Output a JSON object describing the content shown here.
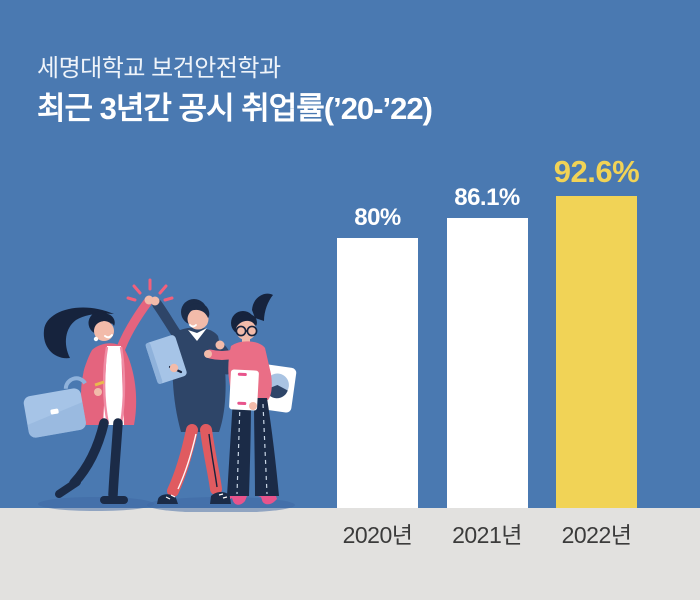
{
  "header": {
    "subtitle": "세명대학교 보건안전학과",
    "title": "최근 3년간 공시 취업률(’20-’22)"
  },
  "chart_data": {
    "type": "bar",
    "title": "최근 3년간 공시 취업률(’20-’22)",
    "subtitle": "세명대학교 보건안전학과",
    "categories": [
      "2020년",
      "2021년",
      "2022년"
    ],
    "values": [
      80,
      86.1,
      92.6
    ],
    "value_labels": [
      "80%",
      "86.1%",
      "92.6%"
    ],
    "highlight_index": 2,
    "ylim": [
      0,
      100
    ],
    "grid": false,
    "legend": false,
    "bar_colors": [
      "#FFFFFF",
      "#FFFFFF",
      "#F1D356"
    ],
    "value_label_colors": [
      "#FFFFFF",
      "#FFFFFF",
      "#F1D356"
    ],
    "category_label_color": "#3B3B3B"
  },
  "colors": {
    "background": "#4A79B1",
    "floor": "#E2E1DF",
    "accent_yellow": "#F1D356",
    "title_text": "#FFFFFF"
  }
}
